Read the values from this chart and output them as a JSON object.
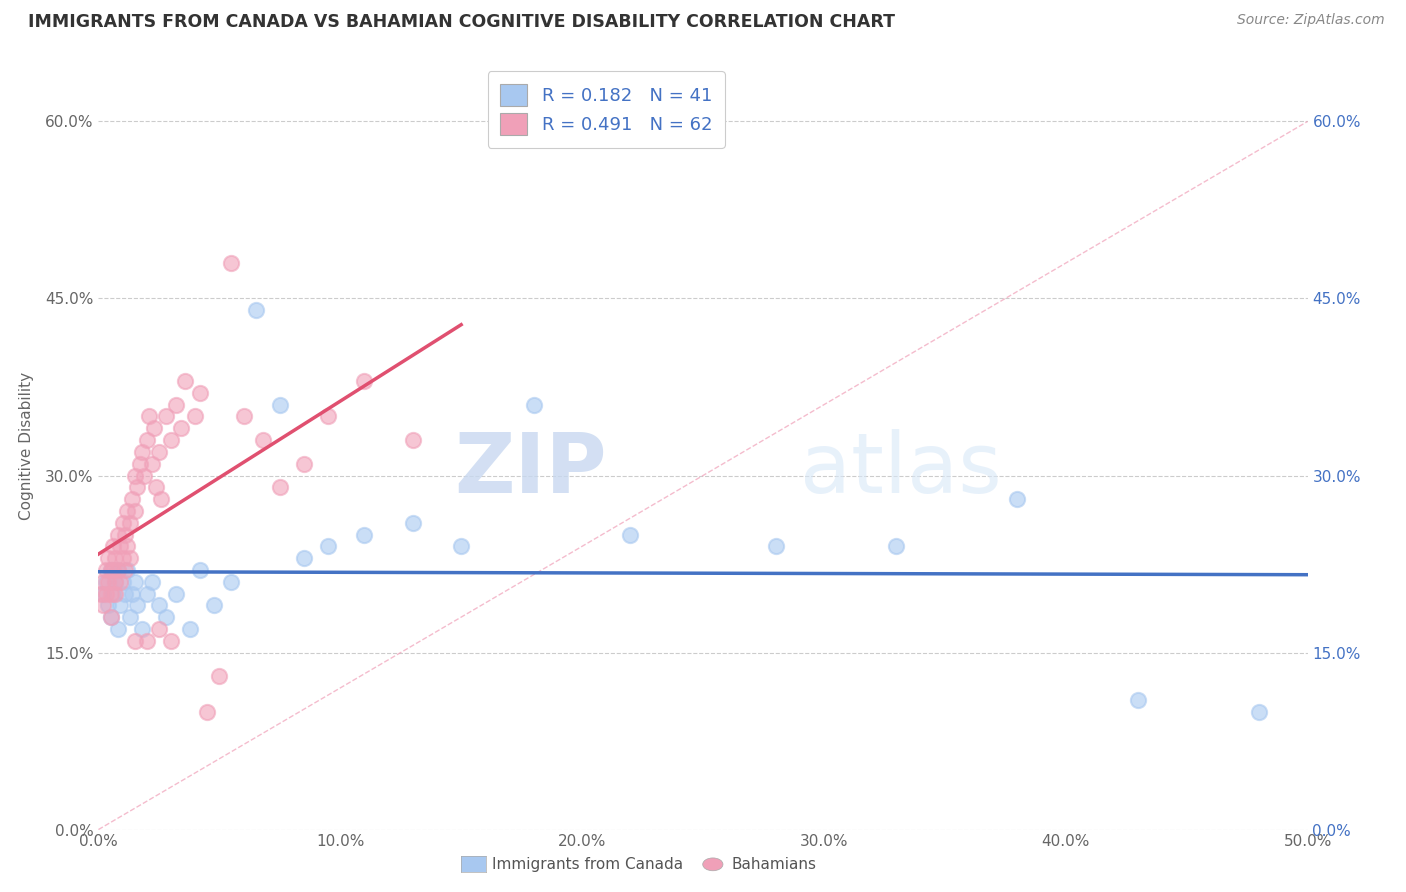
{
  "title": "IMMIGRANTS FROM CANADA VS BAHAMIAN COGNITIVE DISABILITY CORRELATION CHART",
  "source": "Source: ZipAtlas.com",
  "ylabel": "Cognitive Disability",
  "x_label_canada": "Immigrants from Canada",
  "x_label_bahamians": "Bahamians",
  "xlim": [
    0.0,
    0.5
  ],
  "ylim": [
    0.0,
    0.65
  ],
  "xticks": [
    0.0,
    0.1,
    0.2,
    0.3,
    0.4,
    0.5
  ],
  "xticklabels": [
    "0.0%",
    "10.0%",
    "20.0%",
    "30.0%",
    "40.0%",
    "50.0%"
  ],
  "yticks": [
    0.0,
    0.15,
    0.3,
    0.45,
    0.6
  ],
  "yticklabels": [
    "0.0%",
    "15.0%",
    "30.0%",
    "45.0%",
    "60.0%"
  ],
  "R_canada": 0.182,
  "N_canada": 41,
  "R_bahamians": 0.491,
  "N_bahamians": 62,
  "color_canada": "#A8C8F0",
  "color_bahamians": "#F0A0B8",
  "trend_canada": "#4472C4",
  "trend_bahamians": "#E05070",
  "diag_color": "#F0A0B8",
  "watermark_zip": "ZIP",
  "watermark_atlas": "atlas",
  "canada_scatter_x": [
    0.002,
    0.003,
    0.004,
    0.005,
    0.005,
    0.006,
    0.007,
    0.008,
    0.008,
    0.009,
    0.01,
    0.011,
    0.012,
    0.013,
    0.014,
    0.015,
    0.016,
    0.018,
    0.02,
    0.022,
    0.025,
    0.028,
    0.032,
    0.038,
    0.042,
    0.048,
    0.055,
    0.065,
    0.075,
    0.085,
    0.095,
    0.11,
    0.13,
    0.15,
    0.18,
    0.22,
    0.28,
    0.33,
    0.38,
    0.43,
    0.48
  ],
  "canada_scatter_y": [
    0.2,
    0.21,
    0.19,
    0.22,
    0.18,
    0.2,
    0.21,
    0.17,
    0.22,
    0.19,
    0.21,
    0.2,
    0.22,
    0.18,
    0.2,
    0.21,
    0.19,
    0.17,
    0.2,
    0.21,
    0.19,
    0.18,
    0.2,
    0.17,
    0.22,
    0.19,
    0.21,
    0.44,
    0.36,
    0.23,
    0.24,
    0.25,
    0.26,
    0.24,
    0.36,
    0.25,
    0.24,
    0.24,
    0.28,
    0.11,
    0.1
  ],
  "bahamian_scatter_x": [
    0.001,
    0.002,
    0.002,
    0.003,
    0.003,
    0.004,
    0.004,
    0.005,
    0.005,
    0.005,
    0.006,
    0.006,
    0.007,
    0.007,
    0.007,
    0.008,
    0.008,
    0.009,
    0.009,
    0.01,
    0.01,
    0.011,
    0.011,
    0.012,
    0.012,
    0.013,
    0.013,
    0.014,
    0.015,
    0.015,
    0.016,
    0.017,
    0.018,
    0.019,
    0.02,
    0.021,
    0.022,
    0.023,
    0.024,
    0.025,
    0.026,
    0.028,
    0.03,
    0.032,
    0.034,
    0.036,
    0.04,
    0.042,
    0.045,
    0.05,
    0.055,
    0.06,
    0.068,
    0.075,
    0.085,
    0.095,
    0.11,
    0.13,
    0.015,
    0.02,
    0.025,
    0.03
  ],
  "bahamian_scatter_y": [
    0.2,
    0.21,
    0.19,
    0.22,
    0.2,
    0.23,
    0.21,
    0.2,
    0.22,
    0.18,
    0.24,
    0.22,
    0.21,
    0.23,
    0.2,
    0.25,
    0.22,
    0.24,
    0.21,
    0.26,
    0.23,
    0.25,
    0.22,
    0.27,
    0.24,
    0.26,
    0.23,
    0.28,
    0.3,
    0.27,
    0.29,
    0.31,
    0.32,
    0.3,
    0.33,
    0.35,
    0.31,
    0.34,
    0.29,
    0.32,
    0.28,
    0.35,
    0.33,
    0.36,
    0.34,
    0.38,
    0.35,
    0.37,
    0.1,
    0.13,
    0.48,
    0.35,
    0.33,
    0.29,
    0.31,
    0.35,
    0.38,
    0.33,
    0.16,
    0.16,
    0.17,
    0.16
  ]
}
